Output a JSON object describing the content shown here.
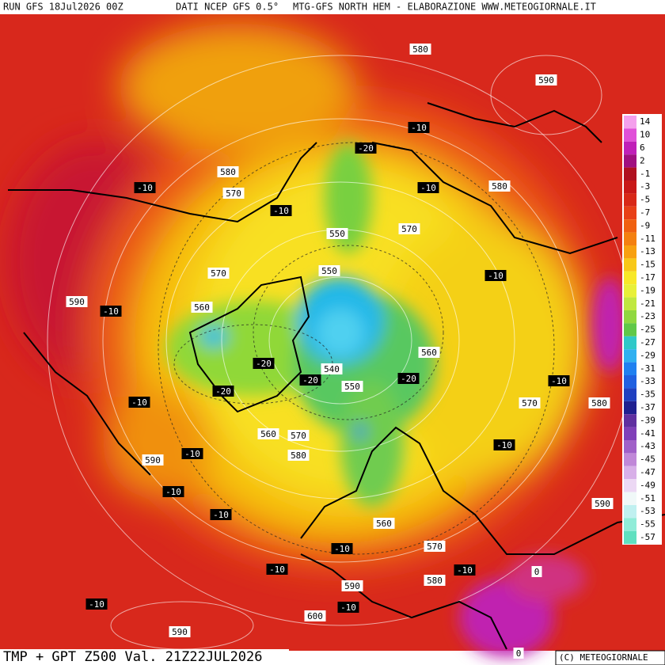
{
  "header": {
    "run": "RUN GFS 18Jul2026 00Z",
    "source": "DATI NCEP GFS 0.5°",
    "product": "MTG-GFS NORTH HEM - ELABORAZIONE WWW.METEOGIORNALE.IT"
  },
  "footer": {
    "title": "TMP + GPT Z500 Val. 21Z22JUL2026",
    "credit": "(C) METEOGIORNALE"
  },
  "legend": {
    "labels": [
      14,
      10,
      6,
      2,
      -1,
      -3,
      -5,
      -7,
      -9,
      -11,
      -13,
      -15,
      -17,
      -19,
      -21,
      -23,
      -25,
      -27,
      -29,
      -31,
      -33,
      -35,
      -37,
      -39,
      -41,
      -43,
      -45,
      -47,
      -49,
      -51,
      -53,
      -55,
      -57
    ]
  },
  "map": {
    "height_labels": [
      580,
      590,
      580,
      570,
      580,
      570,
      550,
      570,
      550,
      560,
      590,
      560,
      540,
      550,
      570,
      580,
      560,
      570,
      580,
      590,
      560,
      590,
      570,
      580,
      590,
      600,
      590,
      0,
      0
    ],
    "temperature_labels": [
      -10,
      -20,
      -10,
      -10,
      -10,
      -10,
      -10,
      -20,
      -20,
      -20,
      -20,
      -10,
      -10,
      -10,
      -10,
      -10,
      -10,
      -10,
      -10,
      -10,
      -10,
      -10
    ]
  }
}
